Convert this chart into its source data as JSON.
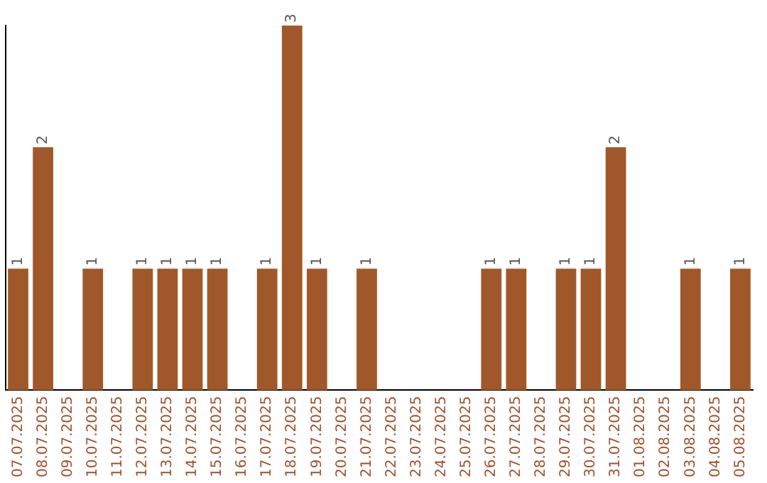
{
  "chart_data": {
    "type": "bar",
    "categories": [
      "07.07.2025",
      "08.07.2025",
      "09.07.2025",
      "10.07.2025",
      "11.07.2025",
      "12.07.2025",
      "13.07.2025",
      "14.07.2025",
      "15.07.2025",
      "16.07.2025",
      "17.07.2025",
      "18.07.2025",
      "19.07.2025",
      "20.07.2025",
      "21.07.2025",
      "22.07.2025",
      "23.07.2025",
      "24.07.2025",
      "25.07.2025",
      "26.07.2025",
      "27.07.2025",
      "28.07.2025",
      "29.07.2025",
      "30.07.2025",
      "31.07.2025",
      "01.08.2025",
      "02.08.2025",
      "03.08.2025",
      "04.08.2025",
      "05.08.2025"
    ],
    "values": [
      1,
      2,
      0,
      1,
      0,
      1,
      1,
      1,
      1,
      0,
      1,
      3,
      1,
      0,
      1,
      0,
      0,
      0,
      0,
      1,
      1,
      0,
      1,
      1,
      2,
      0,
      0,
      1,
      0,
      1
    ],
    "value_labels": [
      "1",
      "2",
      null,
      "1",
      null,
      "1",
      "1",
      "1",
      "1",
      null,
      "1",
      "3",
      "1",
      null,
      "1",
      null,
      null,
      null,
      null,
      "1",
      "1",
      null,
      "1",
      "1",
      "2",
      null,
      null,
      "1",
      null,
      "1"
    ],
    "color": "#a0582a",
    "grid": false,
    "legend": false,
    "tick_labels": "x"
  }
}
